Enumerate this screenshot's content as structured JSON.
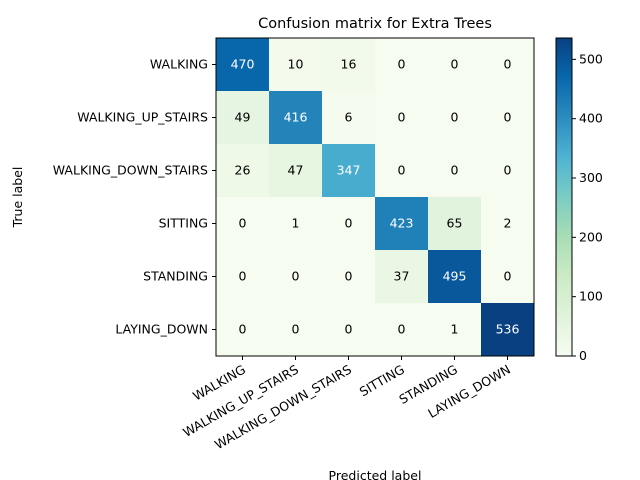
{
  "chart_data": {
    "type": "heatmap",
    "title": "Confusion matrix for Extra Trees",
    "xlabel": "Predicted label",
    "ylabel": "True label",
    "row_labels": [
      "WALKING",
      "WALKING_UP_STAIRS",
      "WALKING_DOWN_STAIRS",
      "SITTING",
      "STANDING",
      "LAYING_DOWN"
    ],
    "col_labels": [
      "WALKING",
      "WALKING_UP_STAIRS",
      "WALKING_DOWN_STAIRS",
      "SITTING",
      "STANDING",
      "LAYING_DOWN"
    ],
    "matrix": [
      [
        470,
        10,
        16,
        0,
        0,
        0
      ],
      [
        49,
        416,
        6,
        0,
        0,
        0
      ],
      [
        26,
        47,
        347,
        0,
        0,
        0
      ],
      [
        0,
        1,
        0,
        423,
        65,
        2
      ],
      [
        0,
        0,
        0,
        37,
        495,
        0
      ],
      [
        0,
        0,
        0,
        0,
        1,
        536
      ]
    ],
    "colormap": "GnBu",
    "colorbar": {
      "range": [
        0,
        536
      ],
      "ticks": [
        0,
        100,
        200,
        300,
        400,
        500
      ]
    },
    "text_color_dark": "#000000",
    "text_color_light": "#ffffff"
  }
}
